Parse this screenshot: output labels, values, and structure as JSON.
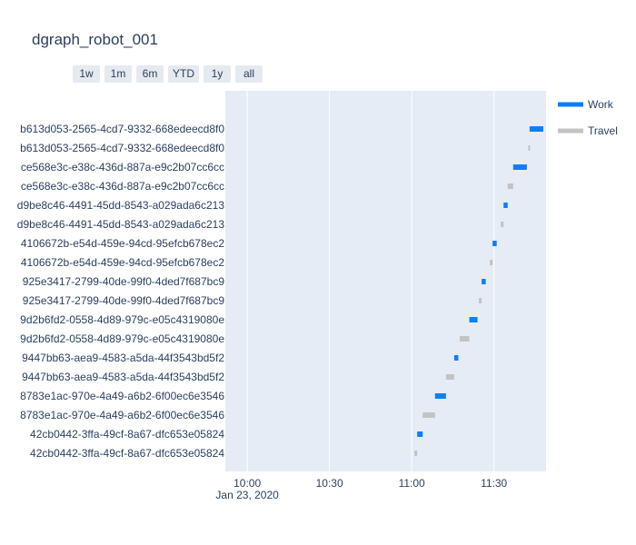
{
  "title": "dgraph_robot_001",
  "range_buttons": [
    "1w",
    "1m",
    "6m",
    "YTD",
    "1y",
    "all"
  ],
  "colors": {
    "Work": "#0a7ffb",
    "Travel": "#c3c3c3",
    "plot_bg": "#e5ecf6"
  },
  "chart_data": {
    "type": "gantt",
    "title": "dgraph_robot_001",
    "x_axis": {
      "type": "date",
      "range": [
        "2020-01-23 09:52",
        "2020-01-23 11:49"
      ],
      "ticks": [
        {
          "value": "2020-01-23 10:00",
          "label": "10:00"
        },
        {
          "value": "2020-01-23 10:30",
          "label": "10:30"
        },
        {
          "value": "2020-01-23 11:00",
          "label": "11:00"
        },
        {
          "value": "2020-01-23 11:30",
          "label": "11:30"
        }
      ],
      "sublabel": "Jan 23, 2020",
      "grid": true
    },
    "legend": {
      "placement": "top-right",
      "entries": [
        "Work",
        "Travel"
      ]
    },
    "tasks": [
      {
        "label": "b613d053-2565-4cd7-9332-668edeecd8f0",
        "type": "Work",
        "start": "2020-01-23 11:43",
        "end": "2020-01-23 11:48"
      },
      {
        "label": "b613d053-2565-4cd7-9332-668edeecd8f0",
        "type": "Travel",
        "start": "2020-01-23 11:42:30",
        "end": "2020-01-23 11:43"
      },
      {
        "label": "ce568e3c-e38c-436d-887a-e9c2b07cc6cc",
        "type": "Work",
        "start": "2020-01-23 11:37",
        "end": "2020-01-23 11:42"
      },
      {
        "label": "ce568e3c-e38c-436d-887a-e9c2b07cc6cc",
        "type": "Travel",
        "start": "2020-01-23 11:35",
        "end": "2020-01-23 11:37"
      },
      {
        "label": "d9be8c46-4491-45dd-8543-a029ada6c213",
        "type": "Work",
        "start": "2020-01-23 11:33:30",
        "end": "2020-01-23 11:35"
      },
      {
        "label": "d9be8c46-4491-45dd-8543-a029ada6c213",
        "type": "Travel",
        "start": "2020-01-23 11:32:30",
        "end": "2020-01-23 11:33:30"
      },
      {
        "label": "4106672b-e54d-459e-94cd-95efcb678ec2",
        "type": "Work",
        "start": "2020-01-23 11:29:30",
        "end": "2020-01-23 11:31"
      },
      {
        "label": "4106672b-e54d-459e-94cd-95efcb678ec2",
        "type": "Travel",
        "start": "2020-01-23 11:28:30",
        "end": "2020-01-23 11:29:30"
      },
      {
        "label": "925e3417-2799-40de-99f0-4ded7f687bc9",
        "type": "Work",
        "start": "2020-01-23 11:25:30",
        "end": "2020-01-23 11:27"
      },
      {
        "label": "925e3417-2799-40de-99f0-4ded7f687bc9",
        "type": "Travel",
        "start": "2020-01-23 11:24:30",
        "end": "2020-01-23 11:25:30"
      },
      {
        "label": "9d2b6fd2-0558-4d89-979c-e05c4319080e",
        "type": "Work",
        "start": "2020-01-23 11:21",
        "end": "2020-01-23 11:24"
      },
      {
        "label": "9d2b6fd2-0558-4d89-979c-e05c4319080e",
        "type": "Travel",
        "start": "2020-01-23 11:17:30",
        "end": "2020-01-23 11:21"
      },
      {
        "label": "9447bb63-aea9-4583-a5da-44f3543bd5f2",
        "type": "Work",
        "start": "2020-01-23 11:15:30",
        "end": "2020-01-23 11:17"
      },
      {
        "label": "9447bb63-aea9-4583-a5da-44f3543bd5f2",
        "type": "Travel",
        "start": "2020-01-23 11:12:30",
        "end": "2020-01-23 11:15:30"
      },
      {
        "label": "8783e1ac-970e-4a49-a6b2-6f00ec6e3546",
        "type": "Work",
        "start": "2020-01-23 11:08:30",
        "end": "2020-01-23 11:12:30"
      },
      {
        "label": "8783e1ac-970e-4a49-a6b2-6f00ec6e3546",
        "type": "Travel",
        "start": "2020-01-23 11:04",
        "end": "2020-01-23 11:08:30"
      },
      {
        "label": "42cb0442-3ffa-49cf-8a67-dfc653e05824",
        "type": "Work",
        "start": "2020-01-23 11:02",
        "end": "2020-01-23 11:04"
      },
      {
        "label": "42cb0442-3ffa-49cf-8a67-dfc653e05824",
        "type": "Travel",
        "start": "2020-01-23 11:01",
        "end": "2020-01-23 11:02"
      }
    ]
  }
}
